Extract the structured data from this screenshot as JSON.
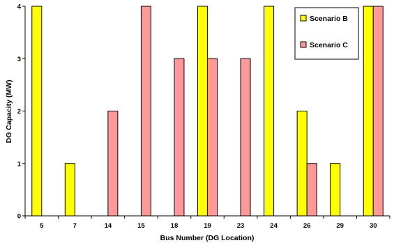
{
  "chart_data": {
    "type": "bar",
    "title": "",
    "xlabel": "Bus Number (DG Location)",
    "ylabel": "DG Capacity (MW)",
    "ylim": [
      0,
      4
    ],
    "yticks": [
      0,
      1,
      2,
      3,
      4
    ],
    "grid": false,
    "legend_position": "top-right",
    "categories": [
      "5",
      "7",
      "14",
      "15",
      "18",
      "19",
      "23",
      "24",
      "26",
      "29",
      "30"
    ],
    "series": [
      {
        "name": "Scenario B",
        "color": "#ffff00",
        "values": [
          4,
          1,
          0,
          0,
          0,
          4,
          0,
          4,
          2,
          1,
          4
        ]
      },
      {
        "name": "Scenario C",
        "color": "#ff9999",
        "values": [
          0,
          0,
          2,
          4,
          3,
          3,
          3,
          0,
          1,
          0,
          4
        ]
      }
    ]
  }
}
